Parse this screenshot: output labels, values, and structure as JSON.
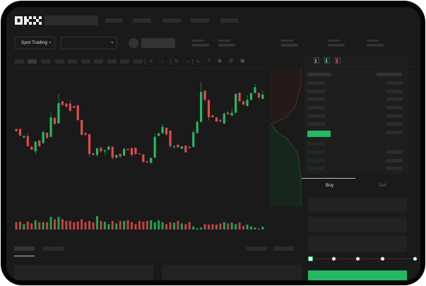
{
  "header": {
    "logo": "OKX",
    "nav_items": 5
  },
  "market_bar": {
    "mode_button": "Spot Trading",
    "pair_select": ""
  },
  "order_form": {
    "tabs": [
      "Buy",
      "Sell"
    ],
    "active_tab": "Buy",
    "slider_percent": 0,
    "slider_stops": [
      0,
      25,
      50,
      75,
      100
    ]
  },
  "colors": {
    "background": "#1a1a1a",
    "up": "#25b863",
    "down": "#e04b4b",
    "placeholder": "#2c2c2c"
  },
  "toolbar_icons": [
    "candle-type-icon",
    "chevron-down-icon",
    "indicator-icon",
    "chevron-down-icon",
    "wave-icon",
    "ruler-icon",
    "camera-icon",
    "gear-icon",
    "fullscreen-icon"
  ],
  "chart_data": {
    "type": "candlestick",
    "title": "",
    "ohlc": [
      [
        155,
        158,
        144,
        146
      ],
      [
        155,
        157,
        124,
        127
      ],
      [
        119,
        128,
        117,
        126
      ],
      [
        125,
        140,
        80,
        82
      ],
      [
        80,
        82,
        65,
        67
      ],
      [
        60,
        103,
        48,
        101
      ],
      [
        106,
        108,
        80,
        82
      ],
      [
        95,
        148,
        92,
        142
      ],
      [
        139,
        141,
        113,
        117
      ],
      [
        122,
        228,
        120,
        205
      ],
      [
        202,
        210,
        174,
        176
      ],
      [
        179,
        303,
        177,
        265
      ],
      [
        272,
        274,
        255,
        257
      ],
      [
        263,
        265,
        246,
        250
      ],
      [
        263,
        277,
        228,
        232
      ],
      [
        252,
        254,
        243,
        245
      ],
      [
        255,
        259,
        190,
        193
      ],
      [
        193,
        195,
        127,
        130
      ],
      [
        138,
        140,
        125,
        130
      ],
      [
        133,
        135,
        35,
        49
      ],
      [
        51,
        55,
        43,
        45
      ],
      [
        45,
        75,
        37,
        73
      ],
      [
        75,
        80,
        55,
        60
      ],
      [
        60,
        67,
        45,
        65
      ],
      [
        67,
        85,
        65,
        80
      ],
      [
        79,
        81,
        25,
        33
      ],
      [
        33,
        46,
        30,
        44
      ],
      [
        49,
        51,
        32,
        38
      ],
      [
        42,
        75,
        40,
        71
      ],
      [
        70,
        72,
        63,
        65
      ],
      [
        74,
        76,
        37,
        45
      ],
      [
        75,
        77,
        45,
        49
      ],
      [
        51,
        53,
        46,
        48
      ],
      [
        47,
        49,
        13,
        15
      ],
      [
        18,
        20,
        11,
        13
      ],
      [
        11,
        34,
        8,
        32
      ],
      [
        34,
        136,
        30,
        122
      ],
      [
        126,
        140,
        124,
        137
      ],
      [
        137,
        178,
        135,
        165
      ],
      [
        160,
        163,
        128,
        132
      ],
      [
        148,
        150,
        75,
        82
      ],
      [
        78,
        88,
        70,
        82
      ],
      [
        88,
        90,
        75,
        77
      ],
      [
        71,
        83,
        69,
        81
      ],
      [
        84,
        86,
        54,
        56
      ],
      [
        79,
        81,
        72,
        74
      ],
      [
        79,
        150,
        77,
        141
      ],
      [
        138,
        192,
        136,
        185
      ],
      [
        185,
        355,
        183,
        312
      ],
      [
        317,
        322,
        270,
        279
      ],
      [
        278,
        280,
        192,
        205
      ],
      [
        213,
        215,
        203,
        205
      ],
      [
        204,
        206,
        184,
        187
      ],
      [
        192,
        200,
        185,
        187
      ],
      [
        178,
        228,
        176,
        220
      ],
      [
        225,
        232,
        216,
        218
      ],
      [
        212,
        240,
        210,
        224
      ],
      [
        224,
        306,
        222,
        304
      ],
      [
        309,
        311,
        268,
        273
      ],
      [
        273,
        275,
        256,
        259
      ],
      [
        253,
        298,
        251,
        279
      ],
      [
        279,
        309,
        277,
        307
      ],
      [
        308,
        346,
        306,
        333
      ],
      [
        308,
        310,
        280,
        289
      ],
      [
        283,
        318,
        281,
        301
      ]
    ],
    "volume": [
      30,
      32,
      22,
      32,
      25,
      38,
      30,
      30,
      30,
      52,
      42,
      52,
      42,
      35,
      35,
      30,
      32,
      42,
      30,
      35,
      30,
      55,
      35,
      32,
      22,
      35,
      25,
      35,
      35,
      38,
      30,
      22,
      35,
      32,
      35,
      38,
      30,
      38,
      30,
      22,
      30,
      28,
      35,
      25,
      22,
      30,
      12,
      5,
      8,
      22,
      20,
      22,
      20,
      25,
      30,
      25,
      28,
      22,
      28,
      15,
      20,
      12,
      8,
      4,
      12
    ],
    "depth": {
      "bids": "green",
      "asks": "red"
    },
    "grid": true
  }
}
